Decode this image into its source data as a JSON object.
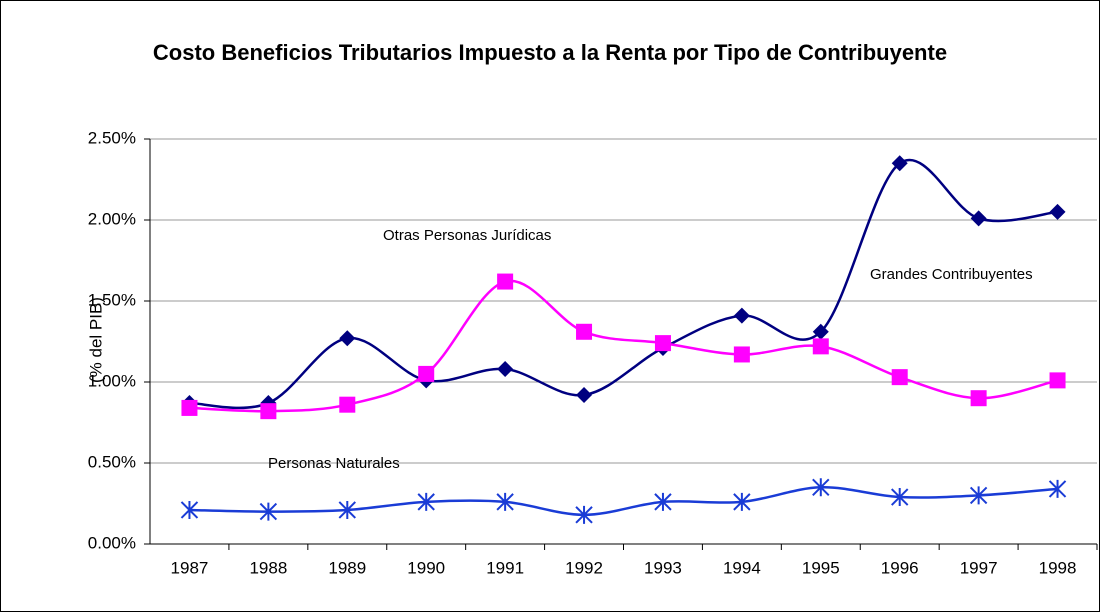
{
  "chart_data": {
    "type": "line",
    "title": "Costo Beneficios Tributarios Impuesto a la Renta por Tipo de Contribuyente",
    "y_label": "(% del PIB)",
    "categories": [
      "1987",
      "1988",
      "1989",
      "1990",
      "1991",
      "1992",
      "1993",
      "1994",
      "1995",
      "1996",
      "1997",
      "1998"
    ],
    "series": [
      {
        "name": "Grandes Contribuyentes",
        "color": "#000080",
        "marker": "diamond",
        "values": [
          0.87,
          0.87,
          1.27,
          1.01,
          1.08,
          0.92,
          1.21,
          1.41,
          1.31,
          2.35,
          2.01,
          2.05
        ]
      },
      {
        "name": "Otras Personas Jurídicas",
        "color": "#ff00ff",
        "marker": "square",
        "values": [
          0.84,
          0.82,
          0.86,
          1.05,
          1.62,
          1.31,
          1.24,
          1.17,
          1.22,
          1.03,
          0.9,
          1.01
        ]
      },
      {
        "name": "Personas Naturales",
        "color": "#1a3cd6",
        "marker": "star",
        "values": [
          0.21,
          0.2,
          0.21,
          0.26,
          0.26,
          0.18,
          0.26,
          0.26,
          0.35,
          0.29,
          0.3,
          0.34
        ]
      }
    ],
    "ylim": [
      0,
      2.5
    ],
    "yticks": [
      {
        "value": 0,
        "label": "0.00%"
      },
      {
        "value": 0.5,
        "label": "0.50%"
      },
      {
        "value": 1,
        "label": "1.00%"
      },
      {
        "value": 1.5,
        "label": "1.50%"
      },
      {
        "value": 2,
        "label": "2.00%"
      },
      {
        "value": 2.5,
        "label": "2.50%"
      }
    ],
    "grid": true,
    "smooth": true
  }
}
